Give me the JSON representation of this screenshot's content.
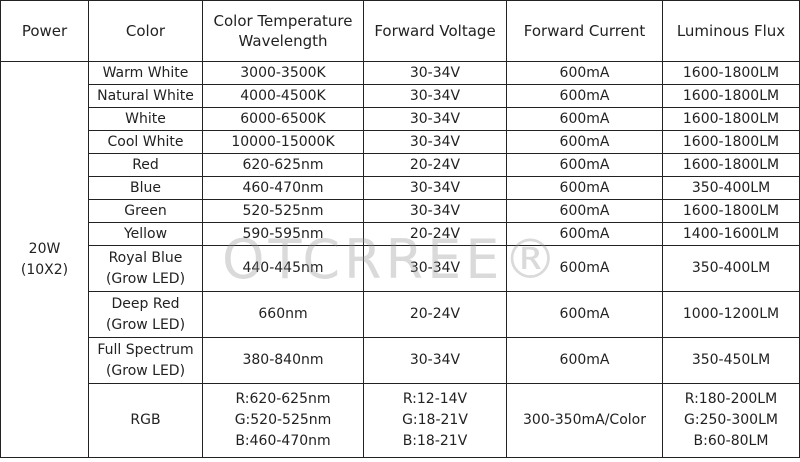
{
  "header": [
    [
      "Power"
    ],
    [
      "Color"
    ],
    [
      "Color Temperature",
      "Wavelength"
    ],
    [
      "Forward Voltage"
    ],
    [
      "Forward Current"
    ],
    [
      "Luminous Flux"
    ]
  ],
  "power": [
    "20W",
    "(10X2)"
  ],
  "rows": [
    [
      [
        "Warm White"
      ],
      [
        "3000-3500K"
      ],
      [
        "30-34V"
      ],
      [
        "600mA"
      ],
      [
        "1600-1800LM"
      ]
    ],
    [
      [
        "Natural White"
      ],
      [
        "4000-4500K"
      ],
      [
        "30-34V"
      ],
      [
        "600mA"
      ],
      [
        "1600-1800LM"
      ]
    ],
    [
      [
        "White"
      ],
      [
        "6000-6500K"
      ],
      [
        "30-34V"
      ],
      [
        "600mA"
      ],
      [
        "1600-1800LM"
      ]
    ],
    [
      [
        "Cool White"
      ],
      [
        "10000-15000K"
      ],
      [
        "30-34V"
      ],
      [
        "600mA"
      ],
      [
        "1600-1800LM"
      ]
    ],
    [
      [
        "Red"
      ],
      [
        "620-625nm"
      ],
      [
        "20-24V"
      ],
      [
        "600mA"
      ],
      [
        "1600-1800LM"
      ]
    ],
    [
      [
        "Blue"
      ],
      [
        "460-470nm"
      ],
      [
        "30-34V"
      ],
      [
        "600mA"
      ],
      [
        "350-400LM"
      ]
    ],
    [
      [
        "Green"
      ],
      [
        "520-525nm"
      ],
      [
        "30-34V"
      ],
      [
        "600mA"
      ],
      [
        "1600-1800LM"
      ]
    ],
    [
      [
        "Yellow"
      ],
      [
        "590-595nm"
      ],
      [
        "20-24V"
      ],
      [
        "600mA"
      ],
      [
        "1400-1600LM"
      ]
    ],
    [
      [
        "Royal Blue",
        "(Grow LED)"
      ],
      [
        "440-445nm"
      ],
      [
        "30-34V"
      ],
      [
        "600mA"
      ],
      [
        "350-400LM"
      ]
    ],
    [
      [
        "Deep Red",
        "(Grow LED)"
      ],
      [
        "660nm"
      ],
      [
        "20-24V"
      ],
      [
        "600mA"
      ],
      [
        "1000-1200LM"
      ]
    ],
    [
      [
        "Full Spectrum",
        "(Grow LED)"
      ],
      [
        "380-840nm"
      ],
      [
        "30-34V"
      ],
      [
        "600mA"
      ],
      [
        "350-450LM"
      ]
    ],
    [
      [
        "RGB"
      ],
      [
        "R:620-625nm",
        "G:520-525nm",
        "B:460-470nm"
      ],
      [
        "R:12-14V",
        "G:18-21V",
        "B:18-21V"
      ],
      [
        "300-350mA/Color"
      ],
      [
        "R:180-200LM",
        "G:250-300LM",
        "B:60-80LM"
      ]
    ]
  ],
  "watermark": "OTCRREE®"
}
